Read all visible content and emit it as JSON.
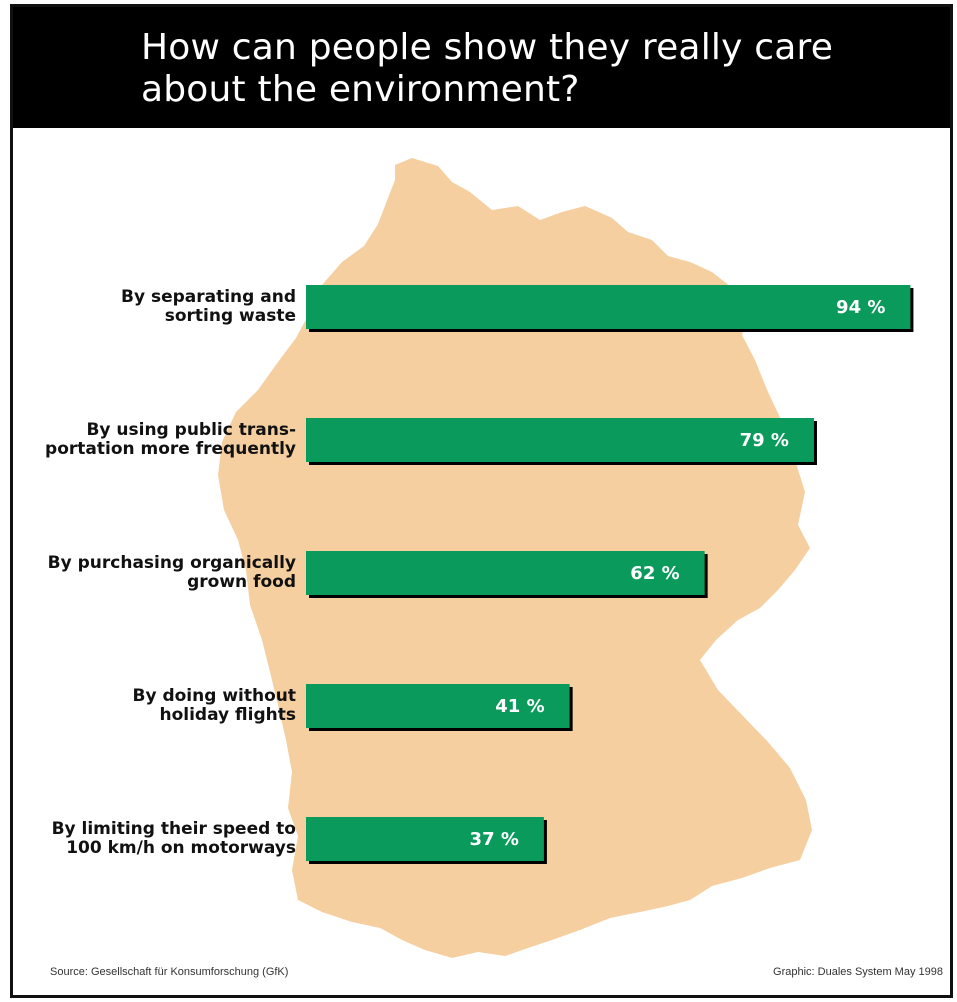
{
  "title": "How can people show they really care about the environment?",
  "source": "Source: Gesellschaft für Konsumforschung (GfK)",
  "credit": "Graphic: Duales System May 1998",
  "colors": {
    "bar": "#0a9a5c",
    "bar_shadow": "#000000",
    "map": "#f6cfa0",
    "title_bg": "#000000"
  },
  "chart_data": {
    "type": "bar",
    "orientation": "horizontal",
    "categories": [
      [
        "By separating and",
        "sorting waste"
      ],
      [
        "By using public trans-",
        "portation more frequently"
      ],
      [
        "By purchasing organically",
        "grown food"
      ],
      [
        "By doing without",
        "holiday flights"
      ],
      [
        "By limiting their speed to",
        "100 km/h on motorways"
      ]
    ],
    "values": [
      94,
      79,
      62,
      41,
      37
    ],
    "value_labels": [
      "94 %",
      "79 %",
      "62 %",
      "41 %",
      "37 %"
    ],
    "unit": "%",
    "xlim": [
      0,
      100
    ],
    "grid": false,
    "legend": "none"
  }
}
